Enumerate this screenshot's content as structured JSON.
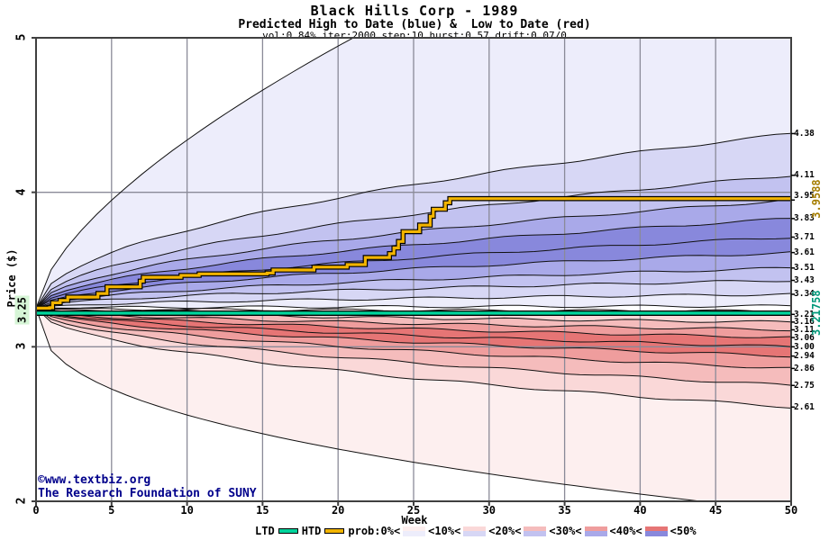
{
  "header": {
    "title": "Black Hills Corp - 1989",
    "subtitle": "Predicted High to Date (blue) &  Low to Date (red)",
    "params": "vol:0.84% iter:2000 step:10 hurst:0.57 drift:0.07/0"
  },
  "watermark": {
    "line1": "©www.textbiz.org",
    "line2": "The Research Foundation of SUNY"
  },
  "axes": {
    "x_label": "Week",
    "y_label": "Price ($)",
    "x_ticks": [
      "0",
      "5",
      "10",
      "15",
      "20",
      "25",
      "30",
      "35",
      "40",
      "45",
      "50"
    ],
    "y_ticks": [
      "5",
      "4",
      "3",
      "2"
    ],
    "start_label": "3.25"
  },
  "side_labels": {
    "htd_final": "3.9588",
    "ltd_final": "3.21758"
  },
  "legend": {
    "ltd": "LTD",
    "htd": "HTD",
    "prob_labels": [
      "prob:0%<",
      "<10%<",
      "<20%<",
      "<30%<",
      "<40%<",
      "<50%"
    ]
  },
  "chart_data": {
    "type": "area",
    "subtype": "probability-fan",
    "title": "Black Hills Corp - 1989",
    "subtitle": "Predicted High to Date (blue) & Low to Date (red)",
    "params": {
      "vol_pct": 0.84,
      "iter": 2000,
      "step": 10,
      "hurst": 0.57,
      "drift": "0.07/0"
    },
    "xlabel": "Week",
    "ylabel": "Price ($)",
    "x_min": 0,
    "x_max": 50,
    "y_min": 2,
    "y_max": 5,
    "x_tick_values": [
      0,
      5,
      10,
      15,
      20,
      25,
      30,
      35,
      40,
      45,
      50
    ],
    "y_tick_values": [
      5,
      4,
      3,
      2
    ],
    "start_price": 3.25,
    "start_week": 0,
    "grid": true,
    "legend_position": "bottom",
    "blue_boundaries": [
      4.38,
      4.11,
      3.95,
      3.83,
      3.71,
      3.61,
      3.51,
      3.43,
      3.34
    ],
    "blue_inner": 3.264,
    "red_top": 3.232,
    "red_boundaries": [
      3.21,
      3.16,
      3.11,
      3.06,
      3.0,
      2.94,
      2.86,
      2.75,
      2.61
    ],
    "blue_envelope": {
      "exit_week": 21,
      "max_price": 5.0,
      "power": 0.64
    },
    "red_envelope": {
      "exit_week": 44,
      "min_price": 2.0,
      "power": 0.4
    },
    "band_power": 0.5,
    "blue_colors": [
      "#ededfb",
      "#d7d7f5",
      "#c2c2f0",
      "#a9a9e9",
      "#8888dc"
    ],
    "red_colors": [
      "#fdefef",
      "#fad8d8",
      "#f5bcbc",
      "#ef9d9d",
      "#e67575"
    ],
    "htd_final": 3.9588,
    "ltd_value": 3.21758,
    "htd_steps": [
      [
        0,
        3.25
      ],
      [
        0.9,
        3.253
      ],
      [
        1.1,
        3.285
      ],
      [
        1.6,
        3.3
      ],
      [
        2.1,
        3.322
      ],
      [
        3.8,
        3.322
      ],
      [
        4.1,
        3.345
      ],
      [
        4.5,
        3.345
      ],
      [
        4.7,
        3.388
      ],
      [
        6.6,
        3.388
      ],
      [
        6.9,
        3.425
      ],
      [
        7.1,
        3.45
      ],
      [
        9.2,
        3.45
      ],
      [
        9.6,
        3.462
      ],
      [
        10.8,
        3.472
      ],
      [
        15.3,
        3.478
      ],
      [
        15.7,
        3.497
      ],
      [
        18.0,
        3.497
      ],
      [
        18.4,
        3.516
      ],
      [
        20.2,
        3.516
      ],
      [
        20.6,
        3.532
      ],
      [
        21.5,
        3.532
      ],
      [
        21.8,
        3.578
      ],
      [
        23.1,
        3.578
      ],
      [
        23.4,
        3.603
      ],
      [
        23.7,
        3.64
      ],
      [
        24.0,
        3.682
      ],
      [
        24.3,
        3.745
      ],
      [
        25.1,
        3.745
      ],
      [
        25.4,
        3.788
      ],
      [
        25.9,
        3.788
      ],
      [
        26.1,
        3.845
      ],
      [
        26.3,
        3.89
      ],
      [
        26.9,
        3.89
      ],
      [
        27.1,
        3.932
      ],
      [
        27.4,
        3.9588
      ],
      [
        50,
        3.9588
      ]
    ],
    "right_labels": [
      {
        "text": "4.38",
        "price": 4.38,
        "dy": 0
      },
      {
        "text": "4.11",
        "price": 4.11,
        "dy": 0
      },
      {
        "text": "3.95",
        "price": 3.95,
        "dy": -5
      },
      {
        "text": "3.83",
        "price": 3.83,
        "dy": 0
      },
      {
        "text": "3.71",
        "price": 3.71,
        "dy": 0
      },
      {
        "text": "3.61",
        "price": 3.61,
        "dy": 0
      },
      {
        "text": "3.51",
        "price": 3.51,
        "dy": 0
      },
      {
        "text": "3.43",
        "price": 3.43,
        "dy": 0
      },
      {
        "text": "3.34",
        "price": 3.34,
        "dy": 0
      },
      {
        "text": "3.21",
        "price": 3.21,
        "dy": 0
      },
      {
        "text": "3.16",
        "price": 3.16,
        "dy": 0
      },
      {
        "text": "3.11",
        "price": 3.11,
        "dy": 0
      },
      {
        "text": "3.06",
        "price": 3.06,
        "dy": 0
      },
      {
        "text": "3.00",
        "price": 3.0,
        "dy": 0
      },
      {
        "text": "2.94",
        "price": 2.94,
        "dy": 0
      },
      {
        "text": "2.86",
        "price": 2.86,
        "dy": 0
      },
      {
        "text": "2.75",
        "price": 2.75,
        "dy": 0
      },
      {
        "text": "2.61",
        "price": 2.61,
        "dy": 0
      }
    ],
    "colors": {
      "htd_line": "#f2b400",
      "ltd_line": "#00d49c",
      "htd_text": "#a57d00",
      "ltd_text": "#009879",
      "grid": "#8a8a98",
      "frame": "#404040",
      "boundary": "#111111",
      "watermark": "#00008b",
      "start_badge_bg": "#d6f5d6"
    }
  }
}
